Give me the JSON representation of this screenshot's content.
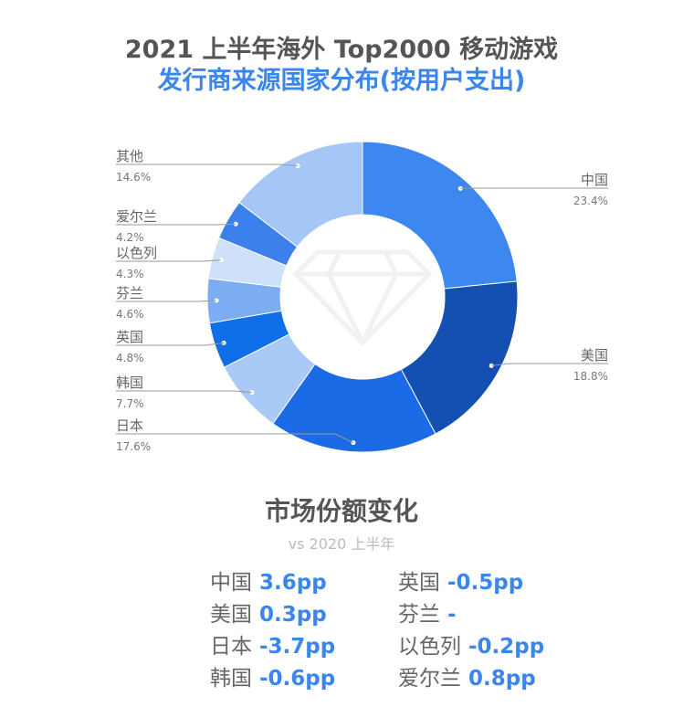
{
  "header": {
    "title_line1": "2021 上半年海外 Top2000 移动游戏",
    "title_line2": "发行商来源国家分布(按用户支出)"
  },
  "chart_data": {
    "type": "pie",
    "variant": "donut",
    "slices": [
      {
        "name": "中国",
        "value": 23.4,
        "label": "23.4%",
        "color": "#3d87f0"
      },
      {
        "name": "美国",
        "value": 18.8,
        "label": "18.8%",
        "color": "#1450b2"
      },
      {
        "name": "日本",
        "value": 17.6,
        "label": "17.6%",
        "color": "#1b6ae6"
      },
      {
        "name": "韩国",
        "value": 7.7,
        "label": "7.7%",
        "color": "#a9c9f7"
      },
      {
        "name": "英国",
        "value": 4.8,
        "label": "4.8%",
        "color": "#0e6fe8"
      },
      {
        "name": "芬兰",
        "value": 4.6,
        "label": "4.6%",
        "color": "#7cadf3"
      },
      {
        "name": "以色列",
        "value": 4.3,
        "label": "4.3%",
        "color": "#cfe0fb"
      },
      {
        "name": "爱尔兰",
        "value": 4.2,
        "label": "4.2%",
        "color": "#3c80ec"
      },
      {
        "name": "其他",
        "value": 14.6,
        "label": "14.6%",
        "color": "#a5c6f6"
      }
    ]
  },
  "market_change": {
    "title": "市场份额变化",
    "subtitle": "vs 2020 上半年",
    "left": [
      {
        "country": "中国",
        "change": "3.6pp"
      },
      {
        "country": "美国",
        "change": "0.3pp"
      },
      {
        "country": "日本",
        "change": "-3.7pp"
      },
      {
        "country": "韩国",
        "change": "-0.6pp"
      }
    ],
    "right": [
      {
        "country": "英国",
        "change": "-0.5pp"
      },
      {
        "country": "芬兰",
        "change": "-"
      },
      {
        "country": "以色列",
        "change": "-0.2pp"
      },
      {
        "country": "爱尔兰",
        "change": "0.8pp"
      }
    ]
  }
}
